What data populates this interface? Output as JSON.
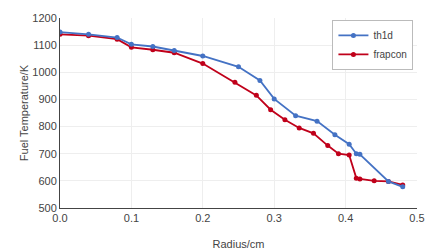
{
  "chart_data": {
    "type": "line",
    "xlabel": "Radius/cm",
    "ylabel": "Fuel Temperature/K",
    "series": [
      {
        "name": "frapcon",
        "color": "#c0001a",
        "marker": "circle",
        "line_style": "solid",
        "x": [
          0.0,
          0.04,
          0.08,
          0.1,
          0.13,
          0.16,
          0.2,
          0.245,
          0.275,
          0.295,
          0.315,
          0.335,
          0.355,
          0.375,
          0.39,
          0.405,
          0.415,
          0.42,
          0.44,
          0.46,
          0.48
        ],
        "values": [
          1140,
          1135,
          1122,
          1092,
          1083,
          1072,
          1032,
          963,
          915,
          862,
          825,
          795,
          775,
          730,
          700,
          695,
          610,
          607,
          600,
          598,
          585
        ]
      },
      {
        "name": "th1d",
        "color": "#4472c4",
        "marker": "circle",
        "line_style": "solid",
        "x": [
          0.0,
          0.04,
          0.08,
          0.1,
          0.13,
          0.16,
          0.2,
          0.25,
          0.28,
          0.3,
          0.33,
          0.36,
          0.385,
          0.405,
          0.415,
          0.42,
          0.46,
          0.48
        ],
        "values": [
          1148,
          1140,
          1128,
          1103,
          1095,
          1080,
          1060,
          1020,
          970,
          902,
          840,
          820,
          770,
          735,
          700,
          698,
          598,
          578
        ]
      }
    ],
    "xlim": [
      0,
      0.5
    ],
    "ylim": [
      500,
      1200
    ],
    "xticks": [
      {
        "value": 0,
        "label": "0.0"
      },
      0.1,
      0.2,
      0.3,
      0.4,
      0.5
    ],
    "yticks": [
      500,
      600,
      700,
      800,
      900,
      1000,
      1100,
      1200
    ],
    "grid": true,
    "legend": "upper right"
  }
}
